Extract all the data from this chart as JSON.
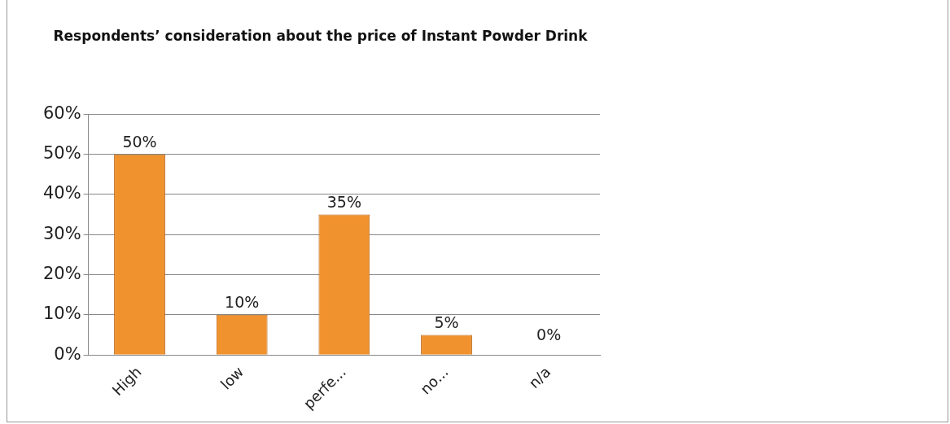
{
  "chart_data": {
    "type": "bar",
    "title": "Respondents’ consideration about the price of Instant Powder Drink",
    "categories": [
      "High",
      "low",
      "perfe...",
      "no...",
      "n/a"
    ],
    "values": [
      50,
      10,
      35,
      5,
      0
    ],
    "value_labels": [
      "50%",
      "10%",
      "35%",
      "5%",
      "0%"
    ],
    "color": "#f0922e",
    "ylim": [
      0,
      60
    ],
    "yticks": [
      {
        "value": 0,
        "label": "0%"
      },
      {
        "value": 10,
        "label": "10%"
      },
      {
        "value": 20,
        "label": "20%"
      },
      {
        "value": 30,
        "label": "30%"
      },
      {
        "value": 40,
        "label": "40%"
      },
      {
        "value": 50,
        "label": "50%"
      },
      {
        "value": 60,
        "label": "60%"
      }
    ],
    "grid": "y"
  }
}
